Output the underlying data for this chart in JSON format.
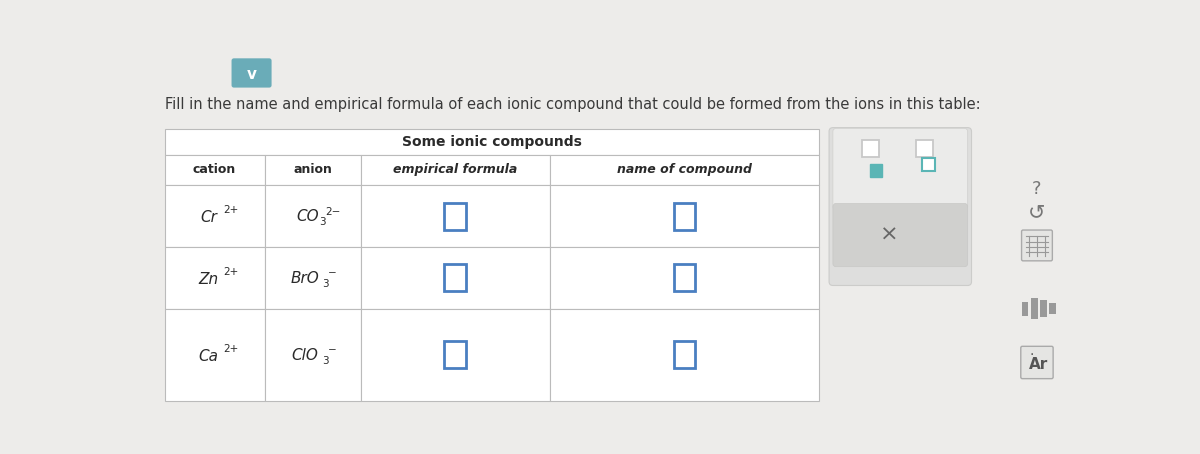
{
  "title_text": "Fill in the name and empirical formula of each ionic compound that could be formed from the ions in this table:",
  "table_title": "Some ionic compounds",
  "col_headers": [
    "cation",
    "anion",
    "empirical formula",
    "name of compound"
  ],
  "rows": [
    {
      "cation": "Cr",
      "cation_sup": "2+",
      "anion": "CO",
      "anion_sub": "3",
      "anion_sup": "2−"
    },
    {
      "cation": "Zn",
      "cation_sup": "2+",
      "anion": "BrO",
      "anion_sub": "3",
      "anion_sup": "−"
    },
    {
      "cation": "Ca",
      "cation_sup": "2+",
      "anion": "ClO",
      "anion_sub": "3",
      "anion_sup": "−"
    }
  ],
  "bg_color": "#edecea",
  "table_bg": "#ffffff",
  "table_border_color": "#bbbbbb",
  "title_color": "#3a3a3a",
  "header_text_color": "#2a2a2a",
  "cell_text_color": "#2a2a2a",
  "input_box_color": "#4a7fc1",
  "teal_color": "#5ab5b5",
  "teal_fill": "#5ab5b5",
  "panel_bg": "#dededd",
  "panel_top_bg": "#ebebea",
  "panel_mid_bg": "#d0d0ce",
  "x_color": "#666666",
  "icon_color": "#888888",
  "chevron_bg": "#6aacb8",
  "chevron_fg": "#ffffff"
}
